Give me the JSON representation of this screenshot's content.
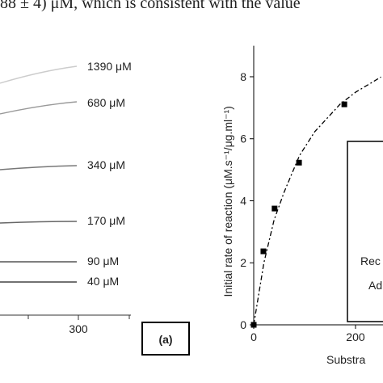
{
  "caption_fragment": "88 ± 4) μM, which is consistent with the value",
  "panel_a": {
    "curve_labels": [
      "1390 μM",
      "680 μM",
      "340 μM",
      "170 μM",
      "90 μM",
      "40 μM"
    ],
    "xtick": "300",
    "tag": "(a)"
  },
  "chart_data": {
    "type": "scatter",
    "y_label": "Initial rate of reaction (μM.s⁻¹/μg.ml⁻¹)",
    "x_label": "Substra",
    "x": [
      0,
      19,
      41,
      89,
      178
    ],
    "values": [
      0,
      2.37,
      3.75,
      5.23,
      7.11
    ],
    "color": "#000000",
    "fit": {
      "x": [
        0,
        20,
        40,
        60,
        90,
        120,
        170,
        200,
        250
      ],
      "values": [
        0,
        2.0,
        3.38,
        4.29,
        5.46,
        6.23,
        7.12,
        7.5,
        7.99
      ]
    },
    "xlim": [
      0,
      254
    ],
    "ylim": [
      0,
      9
    ],
    "xticks": [
      0,
      200
    ],
    "yticks": [
      0,
      2,
      4,
      6,
      8
    ],
    "legend_fragments": [
      "Rec",
      "Ad"
    ]
  }
}
